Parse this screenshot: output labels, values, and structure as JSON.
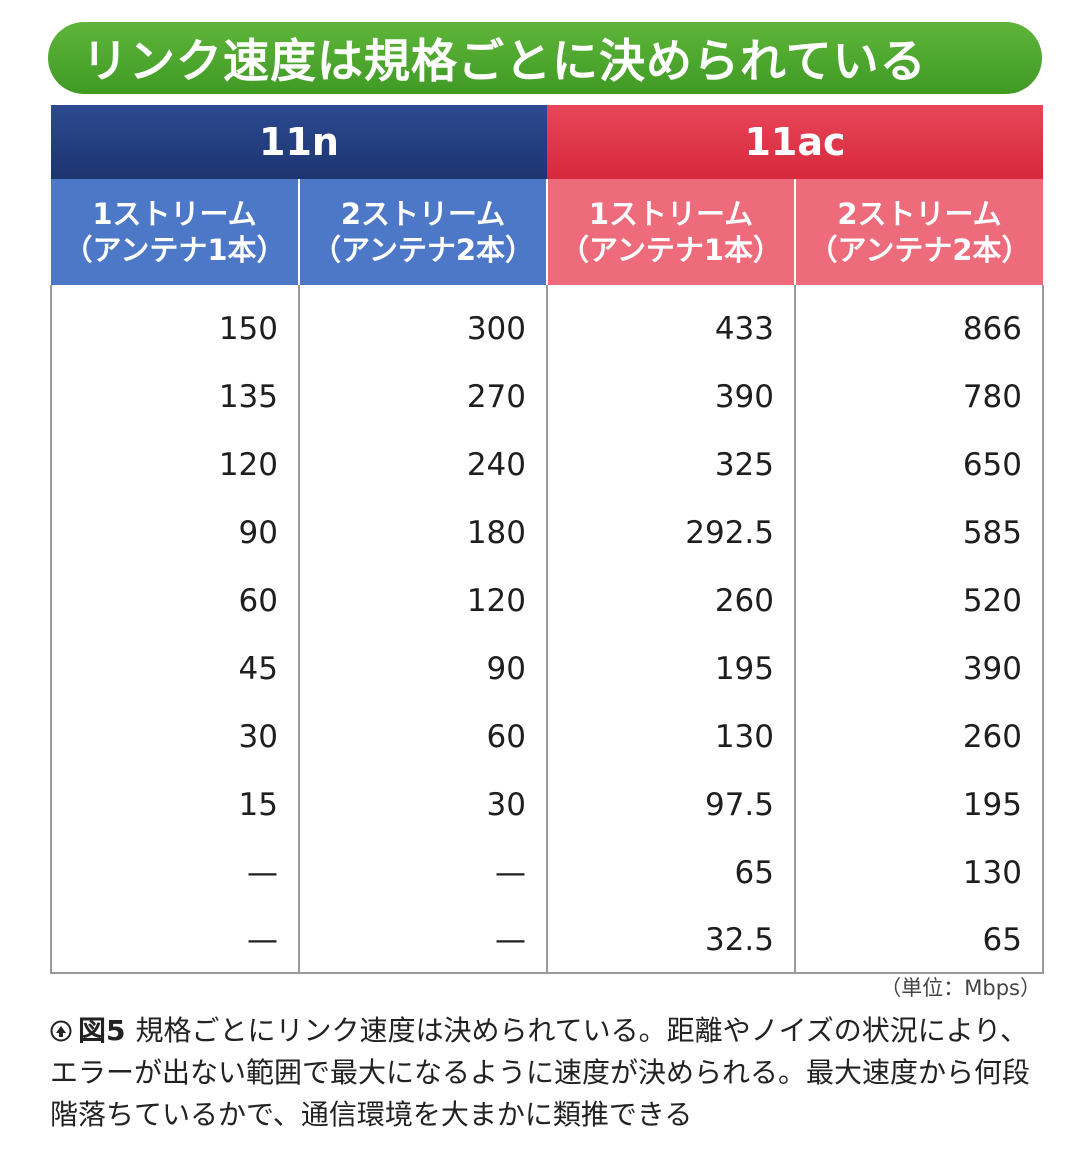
{
  "title": "リンク速度は規格ごとに決められている",
  "groups": {
    "n": "11n",
    "ac": "11ac"
  },
  "sub_headers": {
    "n1": {
      "line1": "1ストリーム",
      "line2": "（アンテナ1本）"
    },
    "n2": {
      "line1": "2ストリーム",
      "line2": "（アンテナ2本）"
    },
    "ac1": {
      "line1": "1ストリーム",
      "line2": "（アンテナ1本）"
    },
    "ac2": {
      "line1": "2ストリーム",
      "line2": "（アンテナ2本）"
    }
  },
  "rows": [
    [
      "150",
      "300",
      "433",
      "866"
    ],
    [
      "135",
      "270",
      "390",
      "780"
    ],
    [
      "120",
      "240",
      "325",
      "650"
    ],
    [
      "90",
      "180",
      "292.5",
      "585"
    ],
    [
      "60",
      "120",
      "260",
      "520"
    ],
    [
      "45",
      "90",
      "195",
      "390"
    ],
    [
      "30",
      "60",
      "130",
      "260"
    ],
    [
      "15",
      "30",
      "97.5",
      "195"
    ],
    [
      "—",
      "—",
      "65",
      "130"
    ],
    [
      "—",
      "—",
      "32.5",
      "65"
    ]
  ],
  "unit": "（単位：Mbps）",
  "caption": {
    "icon": "figure-marker-icon",
    "label": "図5",
    "text": "規格ごとにリンク速度は決められている。距離やノイズの状況により、エラーが出ない範囲で最大になるように速度が決められる。最大速度から何段階落ちているかで、通信環境を大まかに類推できる"
  },
  "colors": {
    "title_green": "#4aa52c",
    "n_header": "#24407f",
    "n_sub": "#4c78c7",
    "ac_header": "#df3346",
    "ac_sub": "#ee6b7c"
  }
}
